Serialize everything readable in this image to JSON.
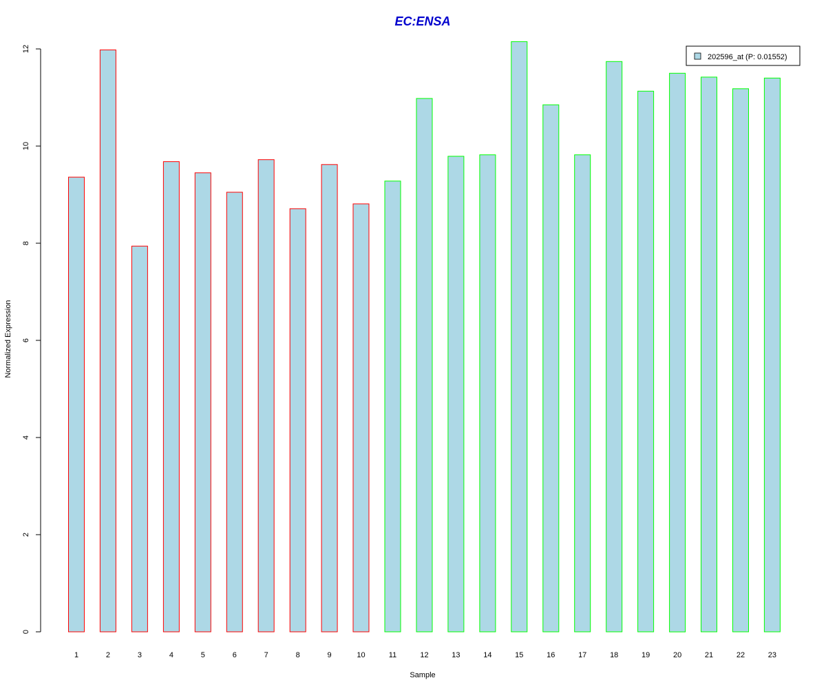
{
  "chart_data": {
    "type": "bar",
    "title": "EC:ENSA",
    "xlabel": "Sample",
    "ylabel": "Normalized Expression",
    "ylim": [
      0,
      12
    ],
    "yticks": [
      0,
      2,
      4,
      6,
      8,
      10,
      12
    ],
    "categories": [
      "1",
      "2",
      "3",
      "4",
      "5",
      "6",
      "7",
      "8",
      "9",
      "10",
      "11",
      "12",
      "13",
      "14",
      "15",
      "16",
      "17",
      "18",
      "19",
      "20",
      "21",
      "22",
      "23"
    ],
    "series": [
      {
        "name": "202596_at (P: 0.01552)",
        "values": [
          9.36,
          11.98,
          7.94,
          9.68,
          9.45,
          9.05,
          9.72,
          8.71,
          9.62,
          8.81,
          9.28,
          10.98,
          9.79,
          9.82,
          12.15,
          10.85,
          9.82,
          11.74,
          11.13,
          11.5,
          11.42,
          11.18,
          11.4
        ]
      }
    ],
    "groups": [
      "red",
      "red",
      "red",
      "red",
      "red",
      "red",
      "red",
      "red",
      "red",
      "red",
      "green",
      "green",
      "green",
      "green",
      "green",
      "green",
      "green",
      "green",
      "green",
      "green",
      "green",
      "green",
      "green"
    ],
    "legend_position": "top-right",
    "colors": {
      "bar_fill": "#ADD8E6",
      "group_red": "#FF0000",
      "group_green": "#00FF00",
      "title": "#0000CD"
    }
  }
}
